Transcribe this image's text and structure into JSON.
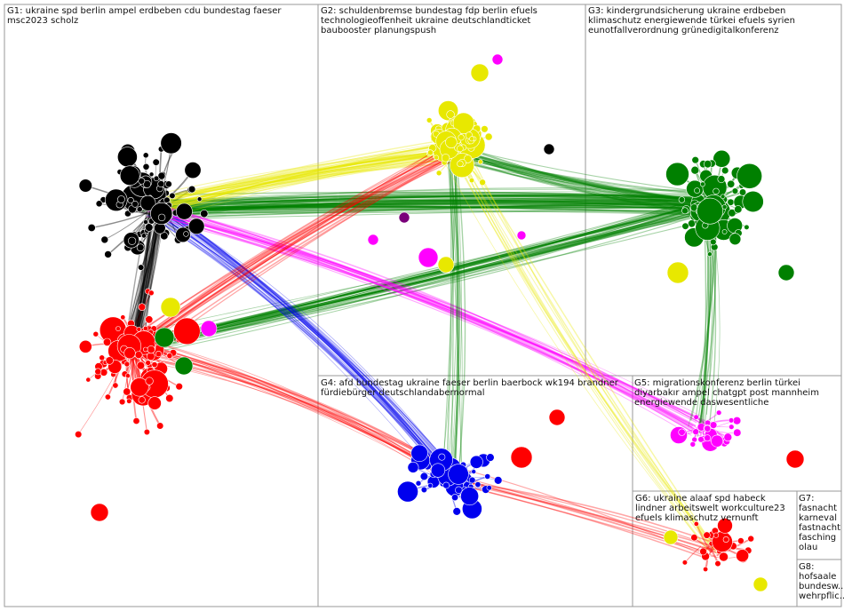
{
  "groups": [
    {
      "id": "g1",
      "text": "G1: ukraine spd berlin ampel erdbeben cdu bundestag faeser msc2023 scholz",
      "color": "#000000"
    },
    {
      "id": "g2",
      "text": "G2: schuldenbremse bundestag fdp berlin efuels technologieoffenheit ukraine deutschlandticket baubooster planungspush",
      "color": "#e8e800"
    },
    {
      "id": "g3",
      "text": "G3: kindergrundsicherung ukraine erdbeben klimaschutz energiewende türkei efuels syrien eunotfallverordnung grünedigitalkonferenz",
      "color": "#008000"
    },
    {
      "id": "g4",
      "text": "G4: afd bundestag ukraine faeser berlin baerbock wk194 brandner fürdiebürger deutschlandabernormal",
      "color": "#0000ee"
    },
    {
      "id": "g5",
      "text": "G5: migrationskonferenz berlin türkei diyarbakır ampel chatgpt post mannheim energiewende daswesentliche",
      "color": "#ff00ff"
    },
    {
      "id": "g6",
      "text": "G6: ukraine alaaf spd habeck lindner arbeitswelt workculture23 efuels klimaschutz vernunft",
      "color": "#ff0000"
    },
    {
      "id": "g7",
      "text": "G7: fasnacht karneval fastnacht fasching olau",
      "color": "#ff0000"
    },
    {
      "id": "g8",
      "text": "G8: hofsaale bundesw... wehrpflic...",
      "color": "#ff0000"
    }
  ],
  "colors": {
    "g1": "#000000",
    "g2": "#e8e800",
    "g3": "#008000",
    "g4": "#0000ee",
    "g5": "#ff00ff",
    "g6": "#ff0000",
    "border": "#9a9a9a"
  }
}
